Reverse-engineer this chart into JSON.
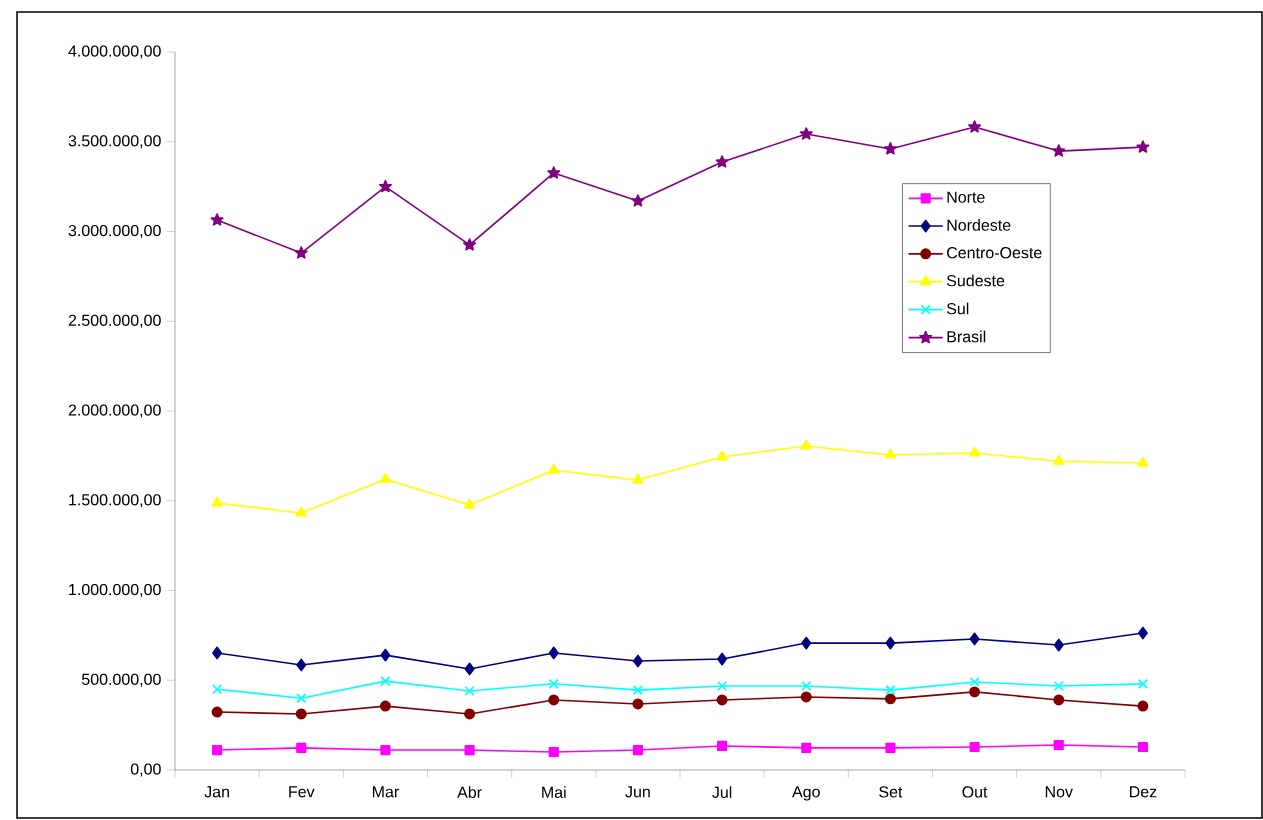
{
  "chart_data": {
    "type": "line",
    "categories": [
      "Jan",
      "Fev",
      "Mar",
      "Abr",
      "Mai",
      "Jun",
      "Jul",
      "Ago",
      "Set",
      "Out",
      "Nov",
      "Dez"
    ],
    "series": [
      {
        "name": "Norte",
        "color": "#ff00ff",
        "marker": "square",
        "values": [
          111000,
          123000,
          111000,
          111000,
          100000,
          111000,
          134000,
          123000,
          123000,
          128000,
          139000,
          128000
        ]
      },
      {
        "name": "Nordeste",
        "color": "#000080",
        "marker": "diamond",
        "values": [
          652000,
          585000,
          640000,
          563000,
          652000,
          607000,
          618000,
          707000,
          707000,
          730000,
          696000,
          763000
        ]
      },
      {
        "name": "Centro-Oeste",
        "color": "#800000",
        "marker": "circle",
        "values": [
          323000,
          312000,
          356000,
          312000,
          390000,
          368000,
          390000,
          407000,
          396000,
          435000,
          390000,
          356000
        ]
      },
      {
        "name": "Sudeste",
        "color": "#ffff00",
        "marker": "triangle",
        "values": [
          1487000,
          1432000,
          1620000,
          1476000,
          1670000,
          1615000,
          1744000,
          1805000,
          1755000,
          1766000,
          1720000,
          1710000
        ]
      },
      {
        "name": "Sul",
        "color": "#00ffff",
        "marker": "cross",
        "values": [
          450000,
          400000,
          495000,
          440000,
          480000,
          445000,
          468000,
          468000,
          445000,
          490000,
          468000,
          480000
        ]
      },
      {
        "name": "Brasil",
        "color": "#800080",
        "marker": "star",
        "values": [
          3064000,
          2880000,
          3250000,
          2925000,
          3326000,
          3170000,
          3387000,
          3543000,
          3460000,
          3582000,
          3448000,
          3470000
        ]
      }
    ],
    "ylim": [
      0,
      4000000
    ],
    "yticks": [
      {
        "value": 0,
        "label": "0,00"
      },
      {
        "value": 500000,
        "label": "500.000,00"
      },
      {
        "value": 1000000,
        "label": "1.000.000,00"
      },
      {
        "value": 1500000,
        "label": "1.500.000,00"
      },
      {
        "value": 2000000,
        "label": "2.000.000,00"
      },
      {
        "value": 2500000,
        "label": "2.500.000,00"
      },
      {
        "value": 3000000,
        "label": "3.000.000,00"
      },
      {
        "value": 3500000,
        "label": "3.500.000,00"
      },
      {
        "value": 4000000,
        "label": "4.000.000,00"
      }
    ],
    "legend": "right"
  }
}
